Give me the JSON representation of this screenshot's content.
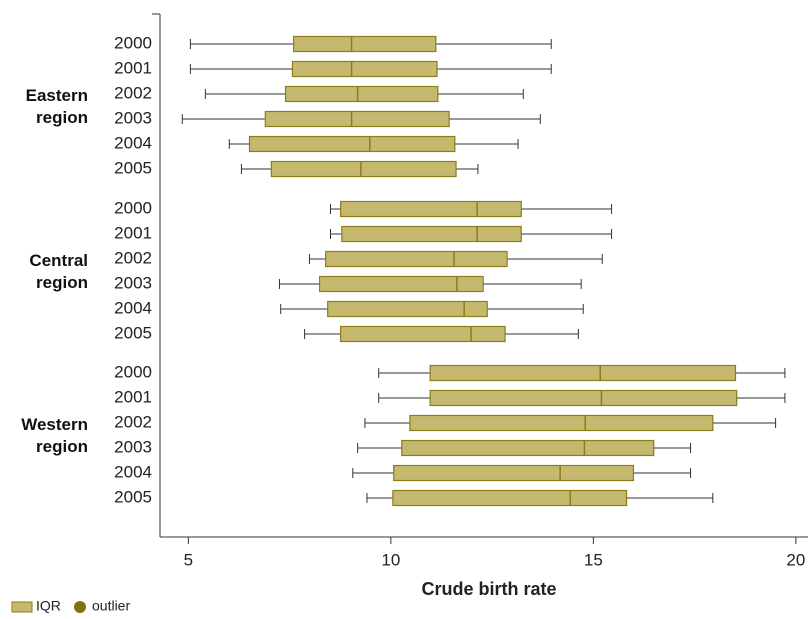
{
  "chart_data": {
    "type": "box",
    "x_label": "Crude birth rate",
    "xlim": [
      4.3,
      20.3
    ],
    "xticks": [
      5,
      10,
      15,
      20
    ],
    "box_fill": "#c4b96f",
    "box_stroke": "#8a7d1a",
    "whisker_color": "#333333",
    "legend": [
      {
        "label": "IQR",
        "color": "#c4b96f"
      },
      {
        "label": "outlier",
        "color": "#7d7310"
      }
    ],
    "groups": [
      {
        "name": "Eastern region",
        "boxes": [
          {
            "category": "2000",
            "low": 5.05,
            "q1": 7.6,
            "median": 9.03,
            "q3": 11.11,
            "high": 13.96
          },
          {
            "category": "2001",
            "low": 5.05,
            "q1": 7.57,
            "median": 9.03,
            "q3": 11.14,
            "high": 13.96
          },
          {
            "category": "2002",
            "low": 5.42,
            "q1": 7.4,
            "median": 9.18,
            "q3": 11.16,
            "high": 13.27
          },
          {
            "category": "2003",
            "low": 4.85,
            "q1": 6.9,
            "median": 9.03,
            "q3": 11.44,
            "high": 13.69
          },
          {
            "category": "2004",
            "low": 6.01,
            "q1": 6.51,
            "median": 9.48,
            "q3": 11.58,
            "high": 13.14
          },
          {
            "category": "2005",
            "low": 6.31,
            "q1": 7.05,
            "median": 9.26,
            "q3": 11.61,
            "high": 12.15
          }
        ]
      },
      {
        "name": "Central region",
        "boxes": [
          {
            "category": "2000",
            "low": 8.51,
            "q1": 8.76,
            "median": 12.13,
            "q3": 13.22,
            "high": 15.45
          },
          {
            "category": "2001",
            "low": 8.51,
            "q1": 8.79,
            "median": 12.13,
            "q3": 13.22,
            "high": 15.45
          },
          {
            "category": "2002",
            "low": 7.99,
            "q1": 8.39,
            "median": 11.56,
            "q3": 12.87,
            "high": 15.22
          },
          {
            "category": "2003",
            "low": 7.25,
            "q1": 8.24,
            "median": 11.63,
            "q3": 12.28,
            "high": 14.7
          },
          {
            "category": "2004",
            "low": 7.28,
            "q1": 8.44,
            "median": 11.81,
            "q3": 12.38,
            "high": 14.75
          },
          {
            "category": "2005",
            "low": 7.87,
            "q1": 8.76,
            "median": 11.98,
            "q3": 12.82,
            "high": 14.63
          }
        ]
      },
      {
        "name": "Western region",
        "boxes": [
          {
            "category": "2000",
            "low": 9.7,
            "q1": 10.97,
            "median": 15.17,
            "q3": 18.51,
            "high": 19.73
          },
          {
            "category": "2001",
            "low": 9.7,
            "q1": 10.97,
            "median": 15.2,
            "q3": 18.54,
            "high": 19.73
          },
          {
            "category": "2002",
            "low": 9.36,
            "q1": 10.47,
            "median": 14.8,
            "q3": 17.95,
            "high": 19.5
          },
          {
            "category": "2003",
            "low": 9.18,
            "q1": 10.27,
            "median": 14.78,
            "q3": 16.49,
            "high": 17.4
          },
          {
            "category": "2004",
            "low": 9.06,
            "q1": 10.07,
            "median": 14.18,
            "q3": 15.99,
            "high": 17.4
          },
          {
            "category": "2005",
            "low": 9.41,
            "q1": 10.05,
            "median": 14.43,
            "q3": 15.82,
            "high": 17.95
          }
        ]
      }
    ]
  }
}
